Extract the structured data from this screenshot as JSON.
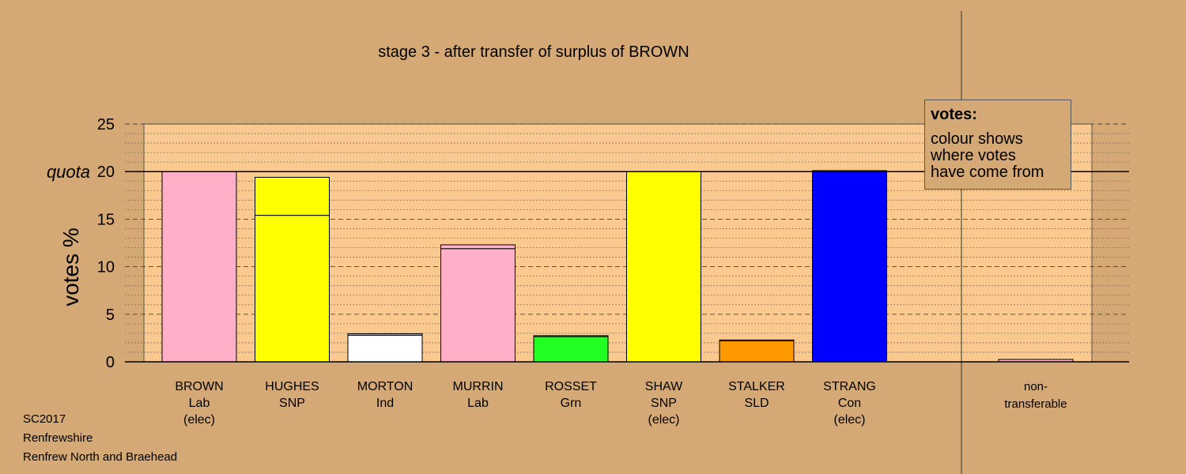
{
  "chart_data": {
    "type": "bar",
    "title": "stage 3 - after transfer of surplus of BROWN",
    "ylabel": "votes %",
    "ylim": [
      0,
      25
    ],
    "yticks": [
      0,
      5,
      10,
      15,
      20,
      25
    ],
    "quota": 20,
    "quota_label": "quota",
    "categories": [
      {
        "name": "BROWN",
        "party": "Lab",
        "status": "(elec)"
      },
      {
        "name": "HUGHES",
        "party": "SNP",
        "status": ""
      },
      {
        "name": "MORTON",
        "party": "Ind",
        "status": ""
      },
      {
        "name": "MURRIN",
        "party": "Lab",
        "status": ""
      },
      {
        "name": "ROSSET",
        "party": "Grn",
        "status": ""
      },
      {
        "name": "SHAW",
        "party": "SNP",
        "status": "(elec)"
      },
      {
        "name": "STALKER",
        "party": "SLD",
        "status": ""
      },
      {
        "name": "STRANG",
        "party": "Con",
        "status": "(elec)"
      }
    ],
    "bars": [
      {
        "segments": [
          {
            "value": 20.0,
            "color": "#ffb0c8"
          }
        ]
      },
      {
        "segments": [
          {
            "value": 15.4,
            "color": "#ffff00"
          },
          {
            "value": 4.0,
            "color": "#ffff00"
          }
        ]
      },
      {
        "segments": [
          {
            "value": 2.8,
            "color": "#ffffff"
          },
          {
            "value": 0.15,
            "color": "#ffb0c8"
          }
        ]
      },
      {
        "segments": [
          {
            "value": 11.9,
            "color": "#ffb0c8"
          },
          {
            "value": 0.4,
            "color": "#ffb0c8"
          }
        ]
      },
      {
        "segments": [
          {
            "value": 2.65,
            "color": "#22ff22"
          },
          {
            "value": 0.1,
            "color": "#ffb0c8"
          }
        ]
      },
      {
        "segments": [
          {
            "value": 20.0,
            "color": "#ffff00"
          }
        ]
      },
      {
        "segments": [
          {
            "value": 2.2,
            "color": "#ff9900"
          },
          {
            "value": 0.1,
            "color": "#ffb0c8"
          }
        ]
      },
      {
        "segments": [
          {
            "value": 20.1,
            "color": "#0000ff"
          }
        ]
      }
    ],
    "nontransferable": {
      "label_line1": "non-",
      "label_line2": "transferable",
      "value": 0.25,
      "color": "#ffb0c8"
    },
    "colors": {
      "background": "#d4a976",
      "plot_area": "#fac98f",
      "axis": "#000000"
    }
  },
  "legend": {
    "title": "votes:",
    "line1": "colour shows",
    "line2": "where votes",
    "line3": "have come from"
  },
  "footer": {
    "election": "SC2017",
    "council": "Renfrewshire",
    "ward": "Renfrew North and Braehead"
  }
}
